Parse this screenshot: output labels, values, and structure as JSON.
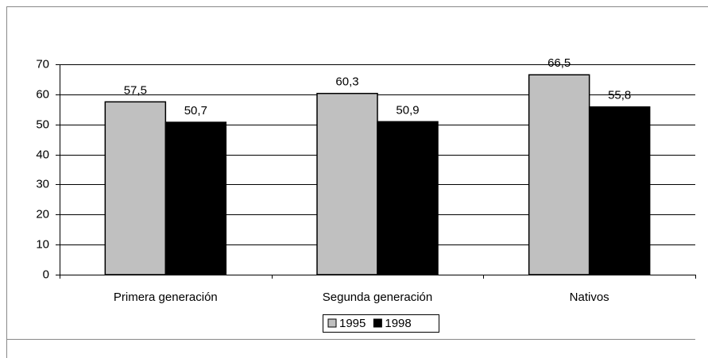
{
  "chart_data": {
    "type": "bar",
    "categories": [
      "Primera generación",
      "Segunda generación",
      "Nativos"
    ],
    "series": [
      {
        "name": "1995",
        "color": "#c0c0c0",
        "values": [
          57.5,
          60.3,
          66.5
        ],
        "value_labels": [
          "57,5",
          "60,3",
          "66,5"
        ]
      },
      {
        "name": "1998",
        "color": "#000000",
        "values": [
          50.7,
          50.9,
          55.8
        ],
        "value_labels": [
          "50,7",
          "50,9",
          "55,8"
        ]
      }
    ],
    "ylim": [
      0,
      70
    ],
    "yticks": [
      0,
      10,
      20,
      30,
      40,
      50,
      60,
      70
    ],
    "grid": true,
    "legend": "bottom"
  }
}
